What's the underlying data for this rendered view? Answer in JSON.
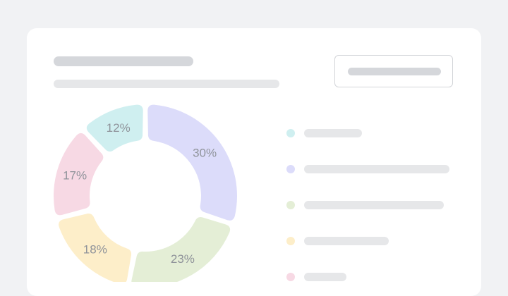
{
  "chart_data": {
    "type": "pie",
    "style": "donut",
    "categories": [
      "",
      "",
      "",
      "",
      ""
    ],
    "values": [
      30,
      23,
      18,
      17,
      12
    ],
    "labels": [
      "30%",
      "23%",
      "18%",
      "17%",
      "12%"
    ],
    "colors": [
      "#dcdcfa",
      "#e4eed6",
      "#fdeec9",
      "#f7d9e4",
      "#cfeff0"
    ],
    "legend": "right"
  },
  "colors": {
    "page_background": "#f1f2f4",
    "card_background": "#ffffff",
    "placeholder_dark": "#d5d7db",
    "placeholder_light": "#e6e7e9",
    "label_text": "#8f939a"
  }
}
